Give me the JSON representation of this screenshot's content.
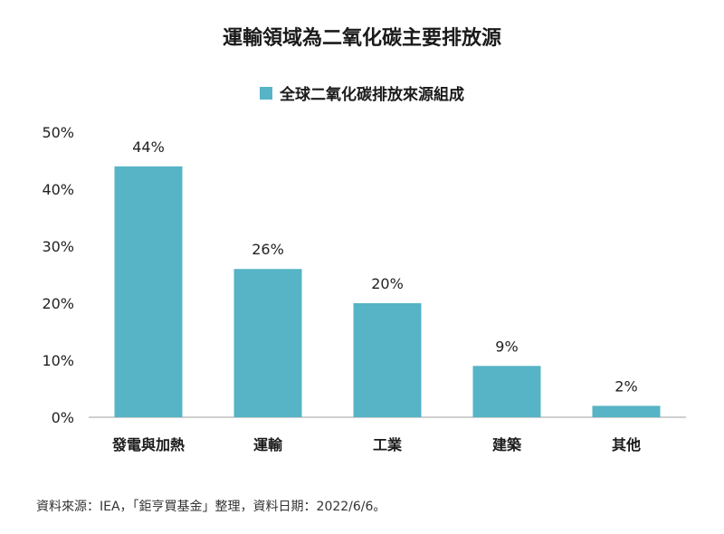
{
  "chart_data": {
    "type": "bar",
    "title": "運輸領域為二氧化碳主要排放源",
    "legend": "全球二氧化碳排放來源組成",
    "categories": [
      "發電與加熱",
      "運輸",
      "工業",
      "建築",
      "其他"
    ],
    "values": [
      44,
      26,
      20,
      9,
      2
    ],
    "data_labels": [
      "44%",
      "26%",
      "20%",
      "9%",
      "2%"
    ],
    "yticks": [
      "0%",
      "10%",
      "20%",
      "30%",
      "40%",
      "50%"
    ],
    "ylim": [
      0,
      50
    ],
    "grid": false,
    "legend_position": "top-center",
    "bar_color": "#56b4c6"
  },
  "source": "資料來源：IEA，「鉅亨買基金」整理，資料日期：2022/6/6。"
}
